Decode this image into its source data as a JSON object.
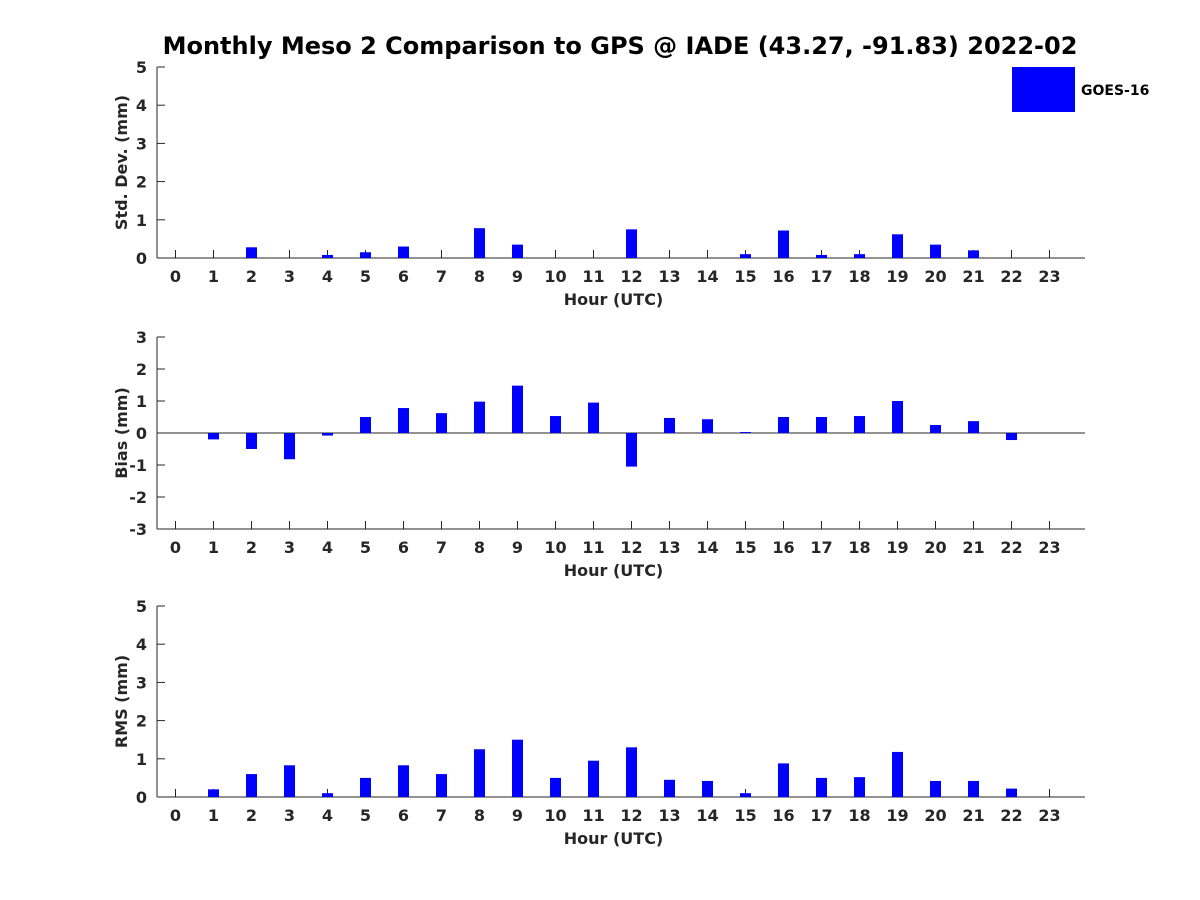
{
  "title": "Monthly Meso 2 Comparison to GPS @ IADE (43.27, -91.83) 2022-02",
  "chart_data": [
    {
      "type": "bar",
      "name": "std-dev",
      "ylabel": "Std. Dev. (mm)",
      "xlabel": "Hour (UTC)",
      "categories": [
        0,
        1,
        2,
        3,
        4,
        5,
        6,
        7,
        8,
        9,
        10,
        11,
        12,
        13,
        14,
        15,
        16,
        17,
        18,
        19,
        20,
        21,
        22,
        23
      ],
      "ylim": [
        0,
        5
      ],
      "yticks": [
        0,
        1,
        2,
        3,
        4,
        5
      ],
      "series": [
        {
          "name": "GOES-16",
          "color": "#0000ff",
          "values": [
            null,
            null,
            0.28,
            null,
            0.08,
            0.15,
            0.3,
            null,
            0.78,
            0.35,
            null,
            null,
            0.75,
            null,
            null,
            0.1,
            0.72,
            0.08,
            0.1,
            0.62,
            0.35,
            0.2,
            null,
            null
          ]
        }
      ]
    },
    {
      "type": "bar",
      "name": "bias",
      "ylabel": "Bias (mm)",
      "xlabel": "Hour (UTC)",
      "categories": [
        0,
        1,
        2,
        3,
        4,
        5,
        6,
        7,
        8,
        9,
        10,
        11,
        12,
        13,
        14,
        15,
        16,
        17,
        18,
        19,
        20,
        21,
        22,
        23
      ],
      "ylim": [
        -3,
        3
      ],
      "yticks": [
        -3,
        -2,
        -1,
        0,
        1,
        2,
        3
      ],
      "series": [
        {
          "name": "GOES-16",
          "color": "#0000ff",
          "values": [
            null,
            -0.2,
            -0.5,
            -0.82,
            -0.08,
            0.5,
            0.78,
            0.62,
            0.98,
            1.48,
            0.53,
            0.95,
            -1.05,
            0.47,
            0.43,
            0.03,
            0.5,
            0.5,
            0.53,
            1.0,
            0.25,
            0.37,
            -0.22,
            null
          ]
        }
      ]
    },
    {
      "type": "bar",
      "name": "rms",
      "ylabel": "RMS (mm)",
      "xlabel": "Hour (UTC)",
      "categories": [
        0,
        1,
        2,
        3,
        4,
        5,
        6,
        7,
        8,
        9,
        10,
        11,
        12,
        13,
        14,
        15,
        16,
        17,
        18,
        19,
        20,
        21,
        22,
        23
      ],
      "ylim": [
        0,
        5
      ],
      "yticks": [
        0,
        1,
        2,
        3,
        4,
        5
      ],
      "series": [
        {
          "name": "GOES-16",
          "color": "#0000ff",
          "values": [
            null,
            0.2,
            0.6,
            0.83,
            0.1,
            0.5,
            0.83,
            0.6,
            1.25,
            1.5,
            0.5,
            0.95,
            1.3,
            0.45,
            0.42,
            0.1,
            0.88,
            0.5,
            0.52,
            1.18,
            0.42,
            0.42,
            0.22,
            null
          ]
        }
      ]
    }
  ],
  "legend": {
    "label": "GOES-16",
    "color": "#0000ff",
    "placement": "top-right"
  }
}
